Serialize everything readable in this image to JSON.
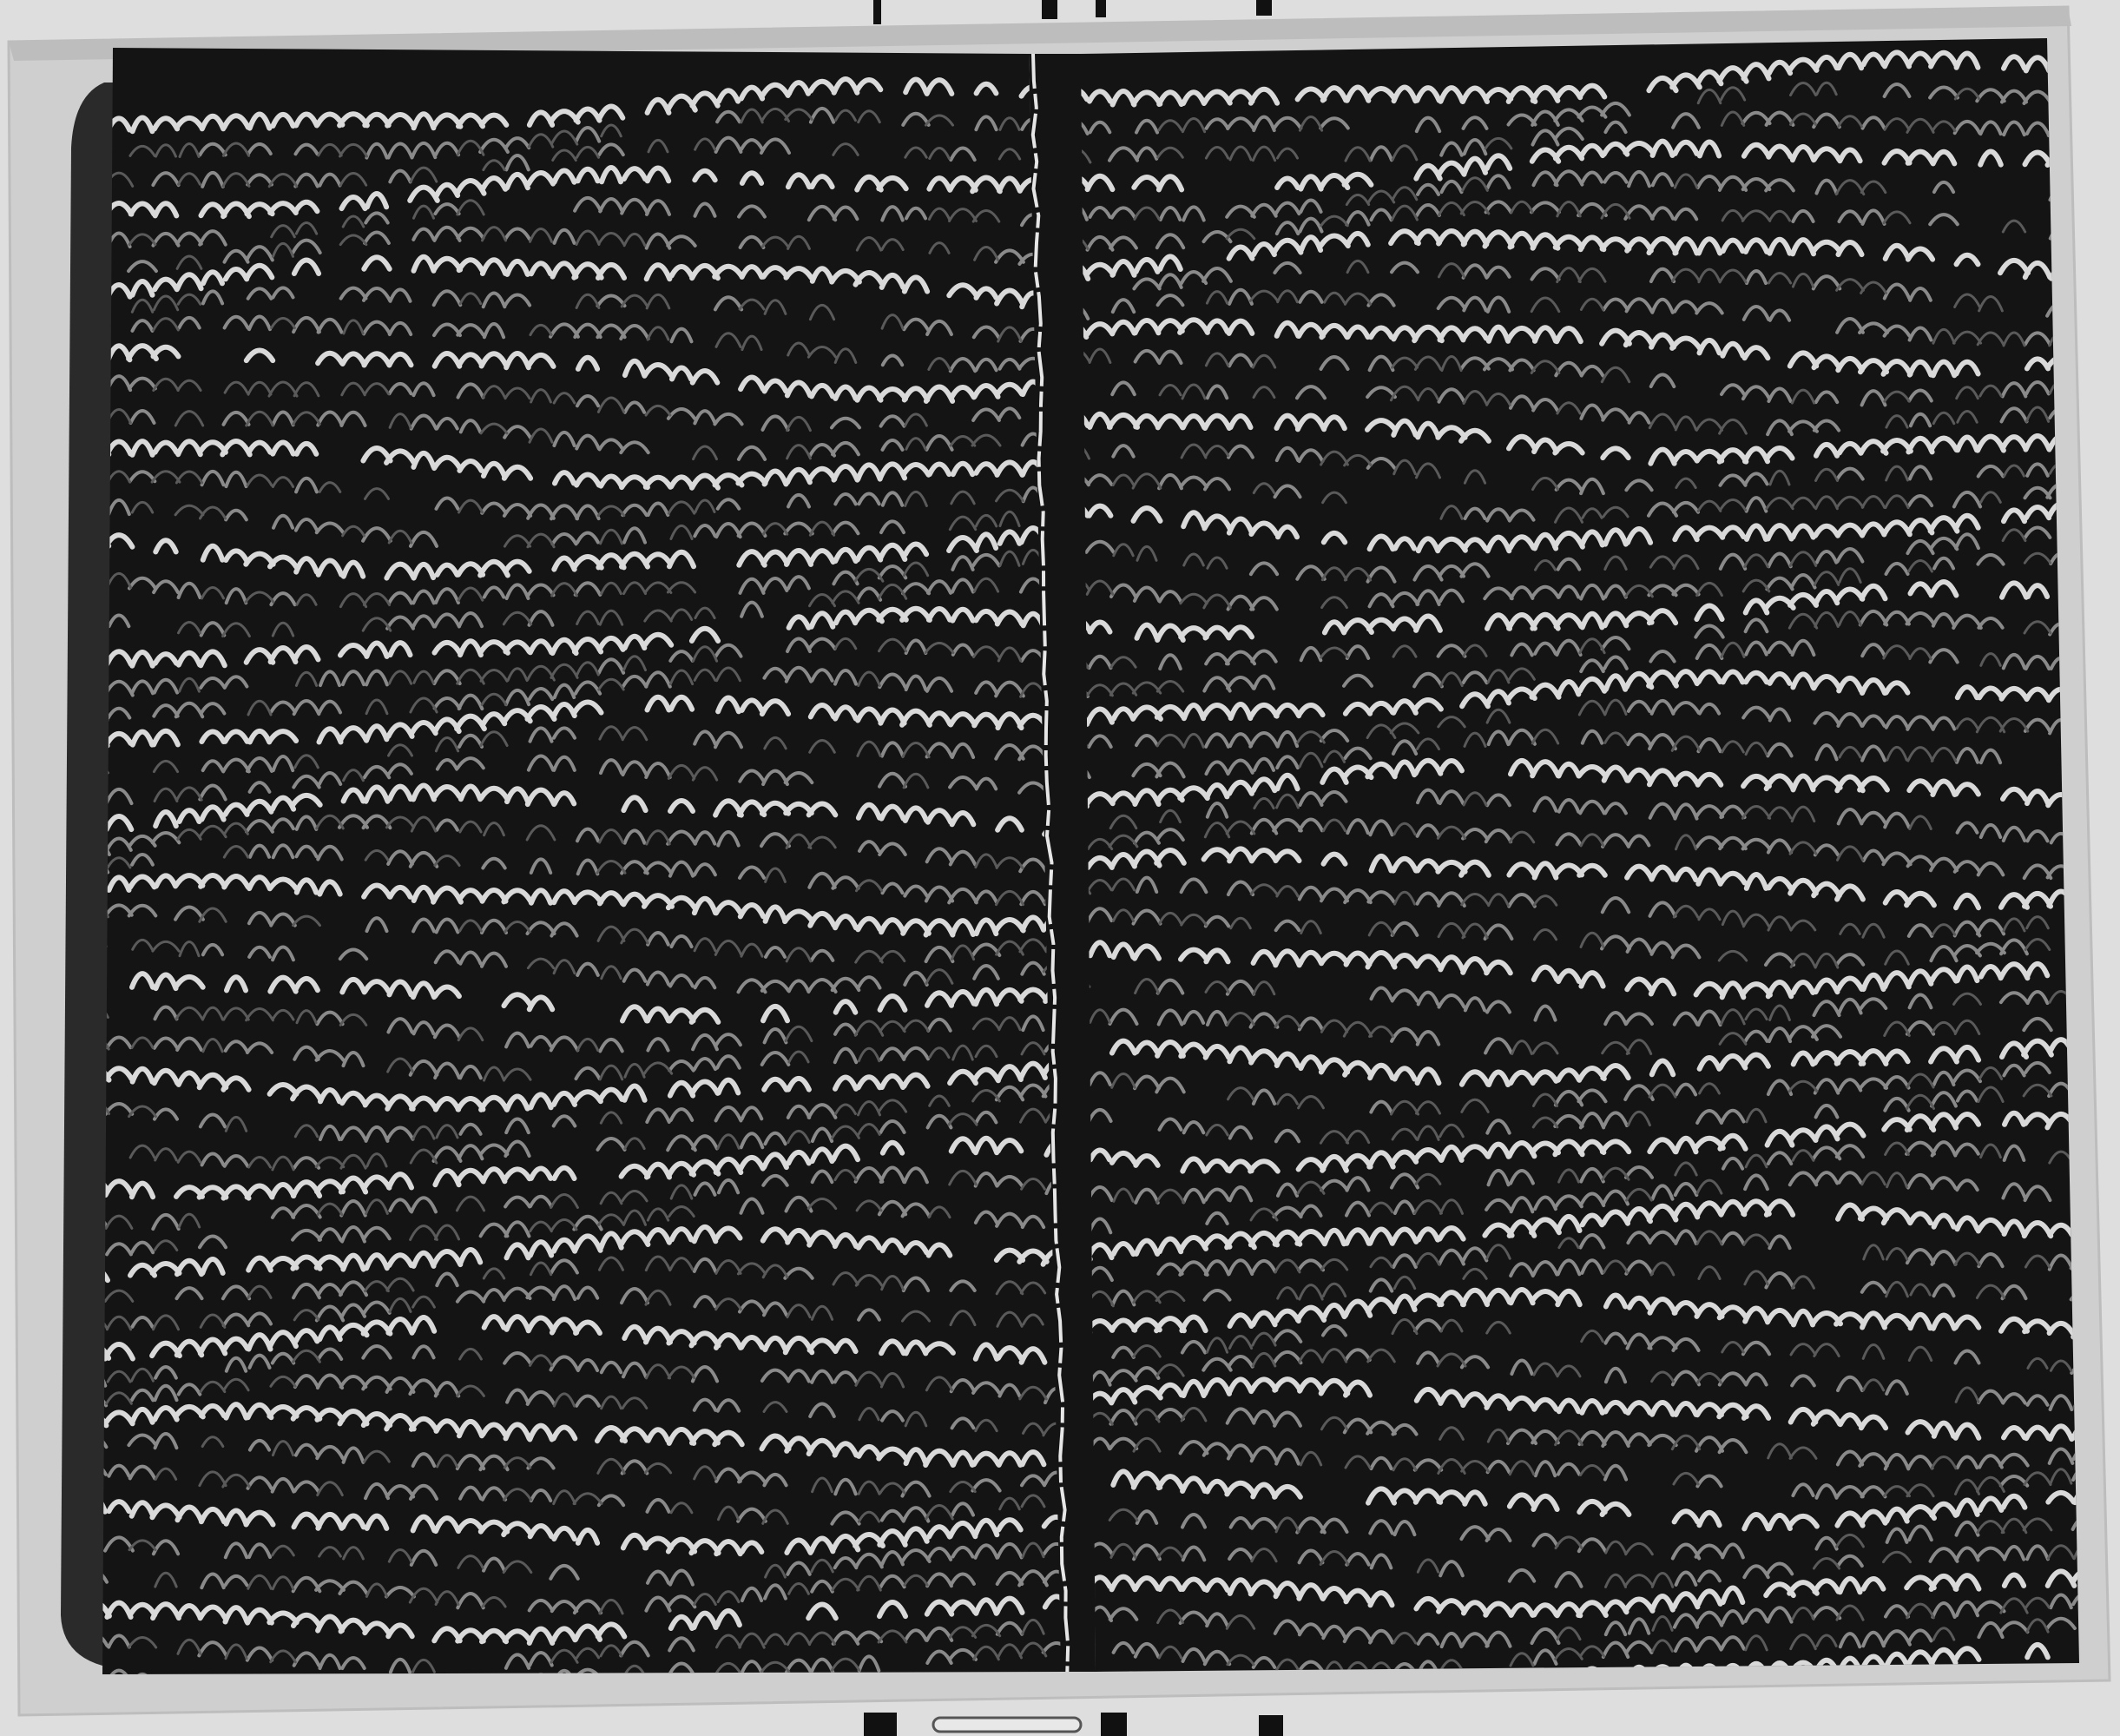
{
  "image": {
    "subject": "open-book-marbled-endpapers",
    "colors": {
      "background": "#dedede",
      "board": "#cfcfcf",
      "board_edge": "#bdbdbd",
      "paper": "#141414",
      "marble_light": "#d9d9d9",
      "marble_dim": "#8a8a8a",
      "marble_faint": "#5a5a5a",
      "gutter_crack": "#e6e6e6",
      "text_block_edge": "#2a2a2a",
      "clip_dark": "#111111"
    }
  }
}
